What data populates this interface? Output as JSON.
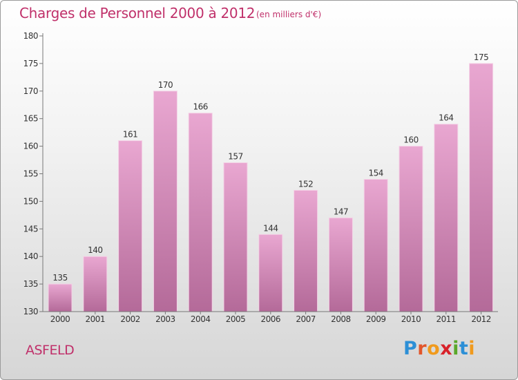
{
  "title": "Charges de Personnel 2000 à 2012",
  "subtitle": "(en milliers d'€)",
  "commune": "ASFELD",
  "logo": {
    "text": "Proxiti",
    "letter_colors": [
      "#2c8fd6",
      "#e2562b",
      "#f09a1d",
      "#d8222a",
      "#5aa82a",
      "#2c8fd6",
      "#f09a1d"
    ]
  },
  "colors": {
    "bar_top": "#e9a7d1",
    "bar_bottom": "#b46a99",
    "text_accent": "#c0306a",
    "axis": "#777777"
  },
  "chart_data": {
    "type": "bar",
    "categories": [
      "2000",
      "2001",
      "2002",
      "2003",
      "2004",
      "2005",
      "2006",
      "2007",
      "2008",
      "2009",
      "2010",
      "2011",
      "2012"
    ],
    "values": [
      135,
      140,
      161,
      170,
      166,
      157,
      144,
      152,
      147,
      154,
      160,
      164,
      175
    ],
    "ylim": [
      130,
      180
    ],
    "yticks": [
      130,
      135,
      140,
      145,
      150,
      155,
      160,
      165,
      170,
      175,
      180
    ],
    "grid": false,
    "data_labels": true
  }
}
